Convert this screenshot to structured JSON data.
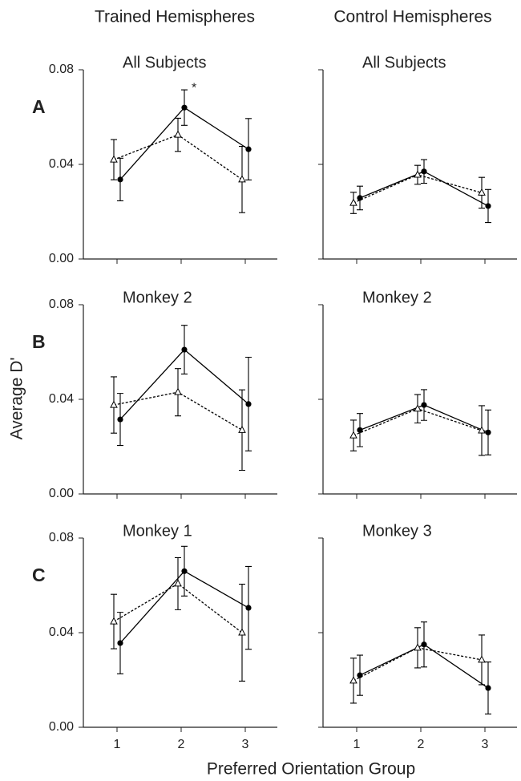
{
  "column_titles": [
    "Trained Hemispheres",
    "Control Hemispheres"
  ],
  "ylabel": "Average D'",
  "xlabel": "Preferred Orientation Group",
  "chart_data": [
    {
      "type": "line",
      "panel": "A",
      "title": "All Subjects",
      "annotation": "*",
      "x": [
        1,
        2,
        3
      ],
      "xlim": [
        0.5,
        3.5
      ],
      "xticks": [
        1,
        2,
        3
      ],
      "xtick_labels": false,
      "ylim": [
        0,
        0.08
      ],
      "yticks": [
        {
          "value": 0,
          "label": "0.00"
        },
        {
          "value": 0.04,
          "label": "0.04"
        },
        {
          "value": 0.08,
          "label": "0.08"
        }
      ],
      "series": [
        {
          "color": "#000000",
          "line": "solid",
          "marker": "circle",
          "values": [
            0.0336,
            0.064,
            0.0464
          ],
          "errors": [
            0.009,
            0.0075,
            0.013
          ]
        },
        {
          "color": "#000000",
          "line": "dashed",
          "marker": "triangle",
          "values": [
            0.042,
            0.0525,
            0.0336
          ],
          "errors": [
            0.0085,
            0.007,
            0.014
          ]
        }
      ]
    },
    {
      "type": "line",
      "title": "All Subjects",
      "x": [
        1,
        2,
        3
      ],
      "xlim": [
        0.5,
        3.5
      ],
      "xticks": [
        1,
        2,
        3
      ],
      "xtick_labels": false,
      "ylim": [
        0,
        0.08
      ],
      "yticks": [
        0,
        0.04,
        0.08
      ],
      "ytick_labels": false,
      "series": [
        {
          "color": "#000000",
          "line": "solid",
          "marker": "circle",
          "values": [
            0.0258,
            0.037,
            0.0224
          ],
          "errors": [
            0.005,
            0.005,
            0.007
          ]
        },
        {
          "color": "#000000",
          "line": "dashed",
          "marker": "triangle",
          "values": [
            0.0237,
            0.0356,
            0.028
          ],
          "errors": [
            0.0045,
            0.004,
            0.0065
          ]
        }
      ]
    },
    {
      "type": "line",
      "panel": "B",
      "title": "Monkey 2",
      "x": [
        1,
        2,
        3
      ],
      "xlim": [
        0.5,
        3.5
      ],
      "xticks": [
        1,
        2,
        3
      ],
      "xtick_labels": false,
      "ylim": [
        0,
        0.08
      ],
      "yticks": [
        {
          "value": 0,
          "label": "0.00"
        },
        {
          "value": 0.04,
          "label": "0.04"
        },
        {
          "value": 0.08,
          "label": "0.08"
        }
      ],
      "series": [
        {
          "color": "#000000",
          "line": "solid",
          "marker": "circle",
          "values": [
            0.0315,
            0.061,
            0.038
          ],
          "errors": [
            0.011,
            0.0103,
            0.0198
          ]
        },
        {
          "color": "#000000",
          "line": "dashed",
          "marker": "triangle",
          "values": [
            0.0376,
            0.043,
            0.027
          ],
          "errors": [
            0.0119,
            0.01,
            0.017
          ]
        }
      ]
    },
    {
      "type": "line",
      "title": "Monkey 2",
      "x": [
        1,
        2,
        3
      ],
      "xlim": [
        0.5,
        3.5
      ],
      "xticks": [
        1,
        2,
        3
      ],
      "xtick_labels": false,
      "ylim": [
        0,
        0.08
      ],
      "yticks": [
        0,
        0.04,
        0.08
      ],
      "ytick_labels": false,
      "series": [
        {
          "color": "#000000",
          "line": "solid",
          "marker": "circle",
          "values": [
            0.027,
            0.0376,
            0.026
          ],
          "errors": [
            0.007,
            0.0065,
            0.0095
          ]
        },
        {
          "color": "#000000",
          "line": "dashed",
          "marker": "triangle",
          "values": [
            0.0247,
            0.036,
            0.0268
          ],
          "errors": [
            0.0065,
            0.006,
            0.0105
          ]
        }
      ]
    },
    {
      "type": "line",
      "panel": "C",
      "title": "Monkey 1",
      "x": [
        1,
        2,
        3
      ],
      "xlim": [
        0.5,
        3.5
      ],
      "xticks": [
        1,
        2,
        3
      ],
      "ylim": [
        0,
        0.08
      ],
      "yticks": [
        {
          "value": 0,
          "label": "0.00"
        },
        {
          "value": 0.04,
          "label": "0.04"
        },
        {
          "value": 0.08,
          "label": "0.08"
        }
      ],
      "series": [
        {
          "color": "#000000",
          "line": "solid",
          "marker": "circle",
          "values": [
            0.0356,
            0.066,
            0.0505
          ],
          "errors": [
            0.013,
            0.0105,
            0.0175
          ]
        },
        {
          "color": "#000000",
          "line": "dashed",
          "marker": "triangle",
          "values": [
            0.0447,
            0.0607,
            0.04
          ],
          "errors": [
            0.0115,
            0.011,
            0.0205
          ]
        }
      ]
    },
    {
      "type": "line",
      "title": "Monkey 3",
      "x": [
        1,
        2,
        3
      ],
      "xlim": [
        0.5,
        3.5
      ],
      "xticks": [
        1,
        2,
        3
      ],
      "ylim": [
        0,
        0.08
      ],
      "yticks": [
        0,
        0.04,
        0.08
      ],
      "ytick_labels": false,
      "series": [
        {
          "color": "#000000",
          "line": "solid",
          "marker": "circle",
          "values": [
            0.022,
            0.035,
            0.0166
          ],
          "errors": [
            0.0085,
            0.0095,
            0.011
          ]
        },
        {
          "color": "#000000",
          "line": "dashed",
          "marker": "triangle",
          "values": [
            0.0197,
            0.0336,
            0.0285
          ],
          "errors": [
            0.0095,
            0.0085,
            0.0105
          ]
        }
      ]
    }
  ]
}
